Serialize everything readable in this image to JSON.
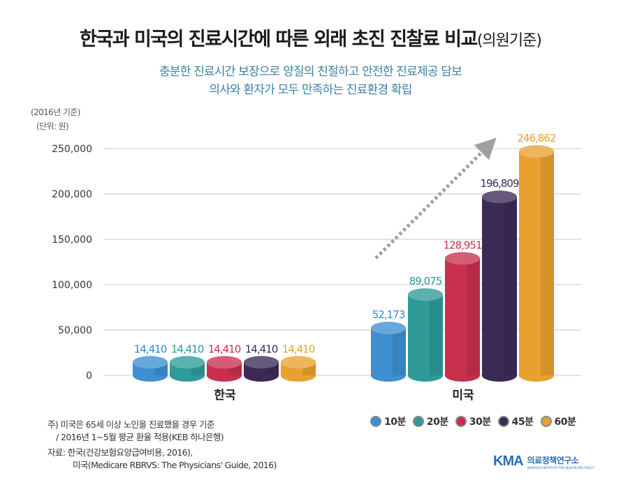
{
  "title": {
    "main": "한국과 미국의 진료시간에 따른 외래 초진 진찰료 비교",
    "suffix": "(의원기준)"
  },
  "subtitle": {
    "line1": "충분한 진료시간 보장으로 양질의 친절하고 안전한 진료제공 담보",
    "line2": "의사와 환자가 모두 만족하는 진료환경 확립"
  },
  "axis_note": {
    "year": "(2016년 기준)",
    "unit": "(단위: 원)"
  },
  "chart_data": {
    "type": "bar",
    "style": "3d-cylinder",
    "categories": [
      "한국",
      "미국"
    ],
    "series": [
      {
        "name": "10분",
        "color": "#3d8fd1",
        "label_color": "#2b8ad0",
        "values": [
          14410,
          52173
        ],
        "labels": [
          "14,410",
          "52,173"
        ]
      },
      {
        "name": "20분",
        "color": "#2e9b99",
        "label_color": "#2b9a96",
        "values": [
          14410,
          89075
        ],
        "labels": [
          "14,410",
          "89,075"
        ]
      },
      {
        "name": "30분",
        "color": "#c8304e",
        "label_color": "#c8304e",
        "values": [
          14410,
          128951
        ],
        "labels": [
          "14,410",
          "128,951"
        ]
      },
      {
        "name": "45분",
        "color": "#3c2a55",
        "label_color": "#3c2a55",
        "values": [
          14410,
          196809
        ],
        "labels": [
          "14,410",
          "196,809"
        ]
      },
      {
        "name": "60분",
        "color": "#e8a02f",
        "label_color": "#e8a02f",
        "values": [
          14410,
          246862
        ],
        "labels": [
          "14,410",
          "246,862"
        ]
      }
    ],
    "yticks": [
      0,
      50000,
      100000,
      150000,
      200000,
      250000
    ],
    "ytick_labels": [
      "0",
      "50,000",
      "100,000",
      "150,000",
      "200,000",
      "250,000"
    ],
    "ylim": [
      0,
      250000
    ],
    "grid": true,
    "trend_arrow": true
  },
  "footnote": {
    "line1": "주) 미국은 65세 이상 노인을 진료했을 경우 기준",
    "line2": "/ 2016년 1~5월 평균 환율 적용(KEB 하나은행)"
  },
  "source": {
    "line1": "자료:  한국(건강보험요양급여비용, 2016),",
    "line2": "미국(Medicare RBRVS: The Physicians' Guide, 2016)"
  },
  "logo": {
    "mark": "KMA",
    "korean": "의료정책연구소",
    "english": "RESEARCH INSTITUTE FOR HEALTHCARE POLICY"
  }
}
